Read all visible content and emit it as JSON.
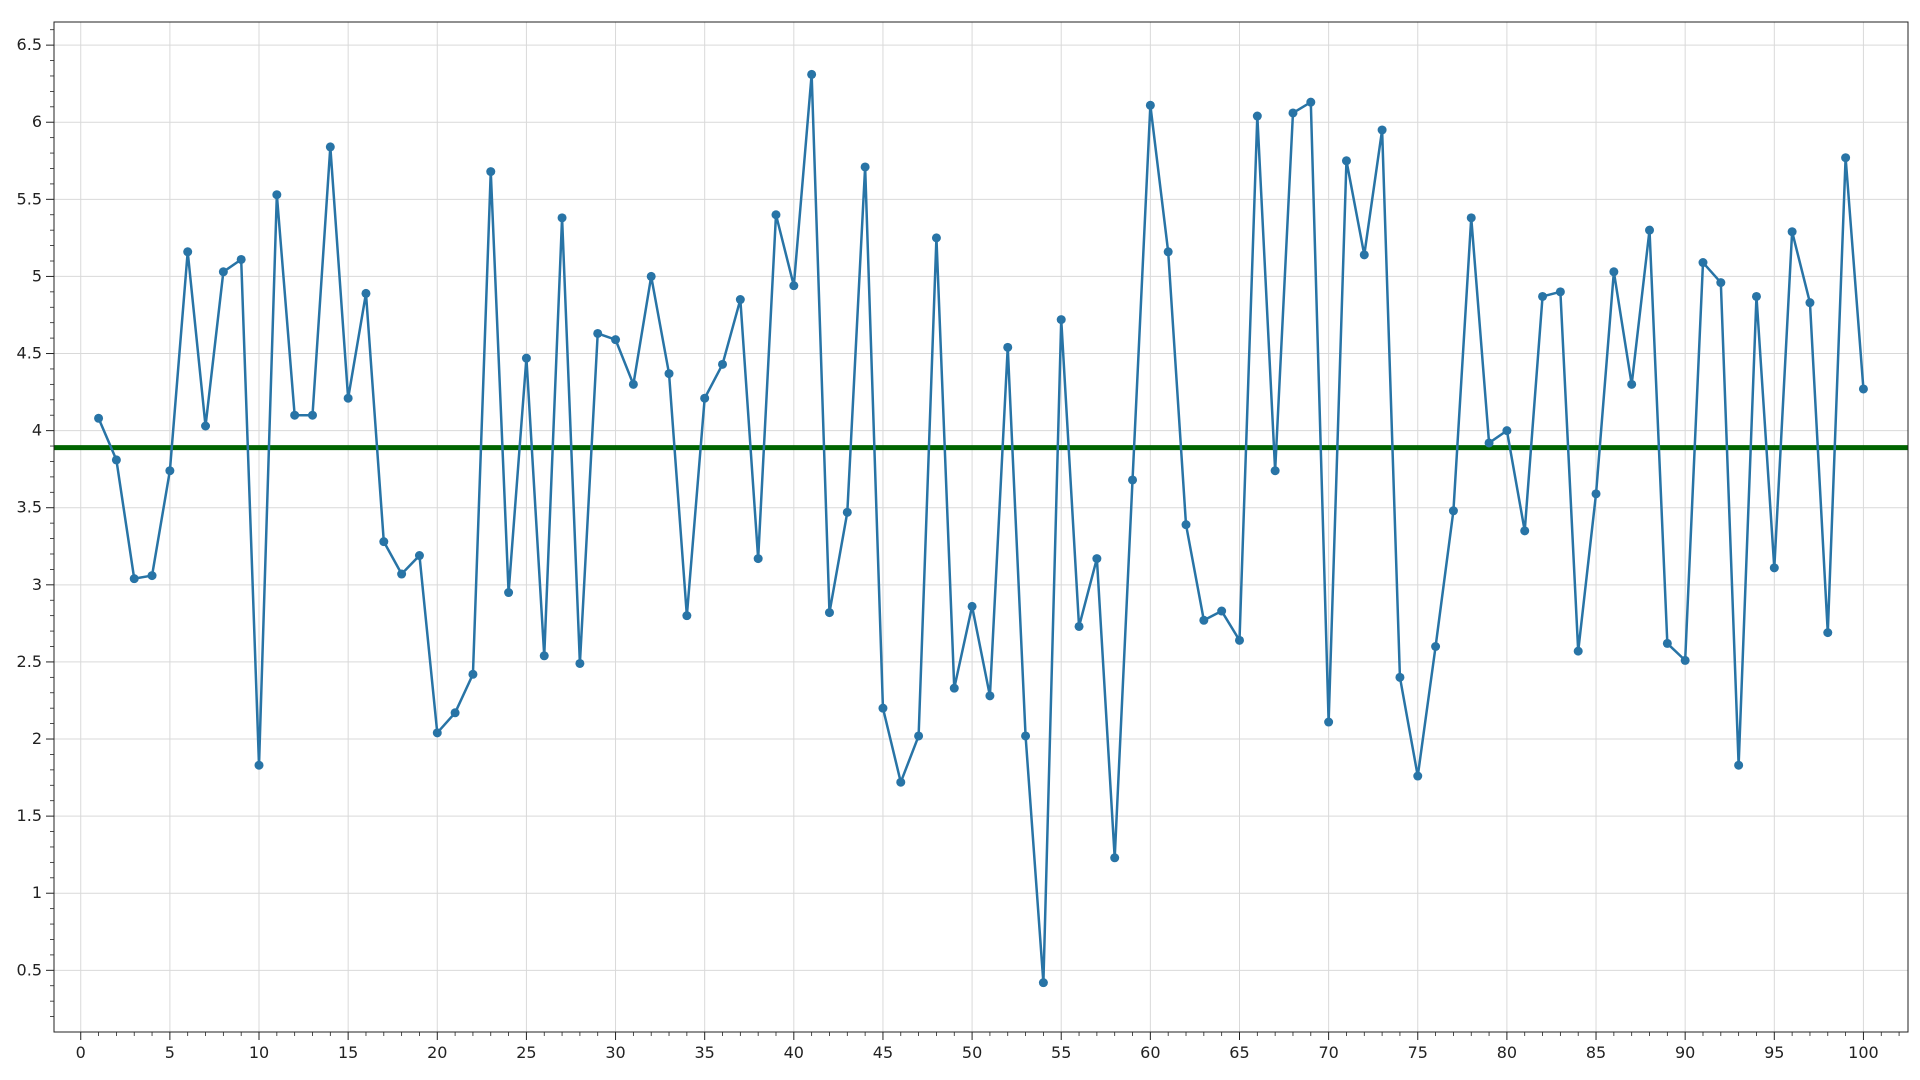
{
  "chart_data": {
    "type": "line",
    "title": "",
    "xlabel": "",
    "ylabel": "",
    "xlim": [
      -1.5,
      102.5
    ],
    "ylim": [
      0.1,
      6.65
    ],
    "x_ticks": [
      0,
      5,
      10,
      15,
      20,
      25,
      30,
      35,
      40,
      45,
      50,
      55,
      60,
      65,
      70,
      75,
      80,
      85,
      90,
      95,
      100
    ],
    "y_ticks": [
      0.5,
      1,
      1.5,
      2,
      2.5,
      3,
      3.5,
      4,
      4.5,
      5,
      5.5,
      6,
      6.5
    ],
    "x_tick_labels": [
      "0",
      "5",
      "10",
      "15",
      "20",
      "25",
      "30",
      "35",
      "40",
      "45",
      "50",
      "55",
      "60",
      "65",
      "70",
      "75",
      "80",
      "85",
      "90",
      "95",
      "100"
    ],
    "y_tick_labels": [
      "0.5",
      "1",
      "1.5",
      "2",
      "2.5",
      "3",
      "3.5",
      "4",
      "4.5",
      "5",
      "5.5",
      "6",
      "6.5"
    ],
    "grid": true,
    "legend": "none",
    "series": [
      {
        "color": "#2874a6",
        "marker": "circle",
        "x": [
          1,
          2,
          3,
          4,
          5,
          6,
          7,
          8,
          9,
          10,
          11,
          12,
          13,
          14,
          15,
          16,
          17,
          18,
          19,
          20,
          21,
          22,
          23,
          24,
          25,
          26,
          27,
          28,
          29,
          30,
          31,
          32,
          33,
          34,
          35,
          36,
          37,
          38,
          39,
          40,
          41,
          42,
          43,
          44,
          45,
          46,
          47,
          48,
          49,
          50,
          51,
          52,
          53,
          54,
          55,
          56,
          57,
          58,
          59,
          60,
          61,
          62,
          63,
          64,
          65,
          66,
          67,
          68,
          69,
          70,
          71,
          72,
          73,
          74,
          75,
          76,
          77,
          78,
          79,
          80,
          81,
          82,
          83,
          84,
          85,
          86,
          87,
          88,
          89,
          90,
          91,
          92,
          93,
          94,
          95,
          96,
          97,
          98,
          99,
          100
        ],
        "values": [
          4.08,
          3.81,
          3.04,
          3.06,
          3.74,
          5.16,
          4.03,
          5.03,
          5.11,
          1.83,
          5.53,
          4.1,
          4.1,
          5.84,
          4.21,
          4.89,
          3.28,
          3.07,
          3.19,
          2.04,
          2.17,
          2.42,
          5.68,
          2.95,
          4.47,
          2.54,
          5.38,
          2.49,
          4.63,
          4.59,
          4.3,
          5.0,
          4.37,
          2.8,
          4.21,
          4.43,
          4.85,
          3.17,
          5.4,
          4.94,
          6.31,
          2.82,
          3.47,
          5.71,
          2.2,
          1.72,
          2.02,
          5.25,
          2.33,
          2.86,
          2.28,
          4.54,
          2.02,
          0.42,
          4.72,
          2.73,
          3.17,
          1.23,
          3.68,
          6.11,
          5.16,
          3.39,
          2.77,
          2.83,
          2.64,
          6.04,
          3.74,
          6.06,
          6.13,
          2.11,
          5.75,
          5.14,
          5.95,
          2.4,
          1.76,
          2.6,
          3.48,
          5.38,
          3.92,
          4.0,
          3.35,
          4.87,
          4.9,
          2.57,
          3.59,
          5.03,
          4.3,
          5.3,
          2.62,
          2.51,
          5.09,
          4.96,
          1.83,
          4.87,
          3.11,
          5.29,
          4.83,
          2.69,
          5.77,
          4.27
        ]
      }
    ],
    "reference_line": {
      "y": 3.89,
      "color": "#006400"
    }
  }
}
